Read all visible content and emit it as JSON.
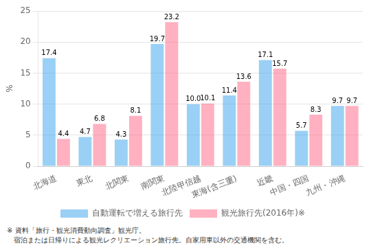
{
  "chart_data": {
    "type": "bar",
    "categories": [
      "北海道",
      "東北",
      "北関東",
      "南関東",
      "北陸甲信越",
      "東海(含三重)",
      "近畿",
      "中国・四国",
      "九州・沖縄"
    ],
    "series": [
      {
        "name": "自動運転で増える旅行先",
        "values": [
          17.4,
          4.7,
          4.3,
          19.7,
          10.0,
          11.4,
          17.1,
          5.7,
          9.7
        ],
        "value_labels": [
          "17.4",
          "4.7",
          "4.3",
          "19.7",
          "10.0",
          "11.4",
          "17.1",
          "5.7",
          "9.7"
        ]
      },
      {
        "name": "観光旅行先(2016年)※",
        "values": [
          4.4,
          6.8,
          8.1,
          23.2,
          10.1,
          13.6,
          15.7,
          8.3,
          9.7
        ],
        "value_labels": [
          "4.4",
          "6.8",
          "8.1",
          "23.2",
          "10.1",
          "13.6",
          "15.7",
          "8.3",
          "9.7"
        ]
      }
    ],
    "y_label": "%",
    "ylim": [
      0,
      25
    ],
    "yticks": [
      0,
      5,
      10,
      15,
      20,
      25
    ],
    "grid": true,
    "legend": "bottom",
    "data_labels": true,
    "annotations": [
      "※ 資料「旅行・観光消費動向調査」観光庁。",
      "　宿泊または日帰りによる観光レクリエーション旅行先。自家用車以外の交通機関を含む。"
    ]
  }
}
